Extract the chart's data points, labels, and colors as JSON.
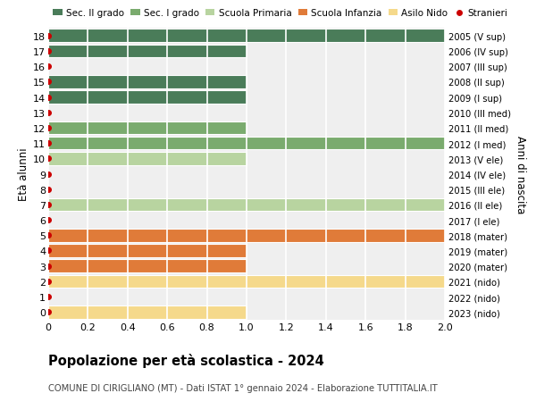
{
  "ages": [
    18,
    17,
    16,
    15,
    14,
    13,
    12,
    11,
    10,
    9,
    8,
    7,
    6,
    5,
    4,
    3,
    2,
    1,
    0
  ],
  "right_labels": [
    "2005 (V sup)",
    "2006 (IV sup)",
    "2007 (III sup)",
    "2008 (II sup)",
    "2009 (I sup)",
    "2010 (III med)",
    "2011 (II med)",
    "2012 (I med)",
    "2013 (V ele)",
    "2014 (IV ele)",
    "2015 (III ele)",
    "2016 (II ele)",
    "2017 (I ele)",
    "2018 (mater)",
    "2019 (mater)",
    "2020 (mater)",
    "2021 (nido)",
    "2022 (nido)",
    "2023 (nido)"
  ],
  "values": [
    2.0,
    1.0,
    0.0,
    1.0,
    1.0,
    0.0,
    1.0,
    2.0,
    1.0,
    0.0,
    0.0,
    2.0,
    0.0,
    2.0,
    1.0,
    1.0,
    2.0,
    0.0,
    1.0
  ],
  "bar_colors": [
    "#4a7c59",
    "#4a7c59",
    "#4a7c59",
    "#4a7c59",
    "#4a7c59",
    "#7aab6e",
    "#7aab6e",
    "#7aab6e",
    "#b8d4a0",
    "#b8d4a0",
    "#b8d4a0",
    "#b8d4a0",
    "#b8d4a0",
    "#e07b39",
    "#e07b39",
    "#e07b39",
    "#f5d98b",
    "#f5d98b",
    "#f5d98b"
  ],
  "stranieri_dots_all": [
    18,
    17,
    16,
    15,
    14,
    13,
    12,
    11,
    10,
    9,
    8,
    7,
    6,
    5,
    4,
    3,
    2,
    1,
    0
  ],
  "legend_labels": [
    "Sec. II grado",
    "Sec. I grado",
    "Scuola Primaria",
    "Scuola Infanzia",
    "Asilo Nido",
    "Stranieri"
  ],
  "legend_colors": [
    "#4a7c59",
    "#7aab6e",
    "#b8d4a0",
    "#e07b39",
    "#f5d98b",
    "#cc0000"
  ],
  "ylabel_left": "Età alunni",
  "ylabel_right": "Anni di nascita",
  "title": "Popolazione per età scolastica - 2024",
  "subtitle": "COMUNE DI CIRIGLIANO (MT) - Dati ISTAT 1° gennaio 2024 - Elaborazione TUTTITALIA.IT",
  "xlim": [
    0,
    2.0
  ],
  "bg_color": "#ffffff",
  "plot_bg_color": "#efefef",
  "grid_color": "#ffffff",
  "bar_height": 0.85,
  "dot_color": "#cc0000"
}
